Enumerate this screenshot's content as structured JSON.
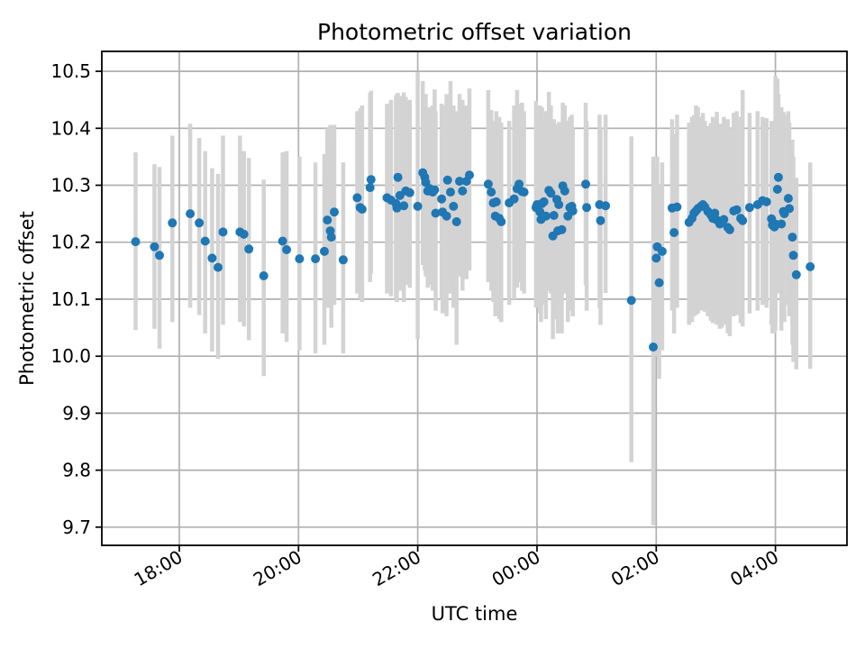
{
  "figure": {
    "title": "Photometric offset variation",
    "xlabel": "UTC time",
    "ylabel": "Photometric offset"
  },
  "chart_data": {
    "type": "scatter",
    "title": "Photometric offset variation",
    "xlabel": "UTC time",
    "ylabel": "Photometric offset",
    "grid": true,
    "legend": false,
    "marker_color": "#1f77b4",
    "errorbar_color": "#d3d3d3",
    "grid_color": "#b0b0b0",
    "axis_color": "#000000",
    "background_color": "#ffffff",
    "x_unit": "minutes since 00:00 of first day; values >= 1440 are after midnight",
    "xlim_minutes": [
      1002,
      1752
    ],
    "ylim": [
      9.668,
      10.535
    ],
    "x_ticks": [
      {
        "minutes": 1080,
        "label": "18:00"
      },
      {
        "minutes": 1200,
        "label": "20:00"
      },
      {
        "minutes": 1320,
        "label": "22:00"
      },
      {
        "minutes": 1440,
        "label": "00:00"
      },
      {
        "minutes": 1560,
        "label": "02:00"
      },
      {
        "minutes": 1680,
        "label": "04:00"
      }
    ],
    "y_ticks": [
      9.7,
      9.8,
      9.9,
      10.0,
      10.1,
      10.2,
      10.3,
      10.4,
      10.5
    ],
    "y_tick_labels": [
      "9.7",
      "9.8",
      "9.9",
      "10.0",
      "10.1",
      "10.2",
      "10.3",
      "10.4",
      "10.5"
    ],
    "points_format": [
      "time_minutes",
      "offset_value",
      "errorbar_low",
      "errorbar_high"
    ],
    "points": [
      [
        1036,
        10.201,
        10.046,
        10.358
      ],
      [
        1055,
        10.192,
        10.048,
        10.337
      ],
      [
        1060,
        10.177,
        10.013,
        10.332
      ],
      [
        1073,
        10.234,
        10.06,
        10.387
      ],
      [
        1091,
        10.25,
        10.085,
        10.408
      ],
      [
        1100,
        10.234,
        10.072,
        10.383
      ],
      [
        1106,
        10.202,
        10.04,
        10.36
      ],
      [
        1113,
        10.172,
        10.008,
        10.33
      ],
      [
        1119,
        10.156,
        9.995,
        10.32
      ],
      [
        1124,
        10.218,
        10.055,
        10.387
      ],
      [
        1141,
        10.218,
        10.06,
        10.387
      ],
      [
        1145,
        10.214,
        10.052,
        10.36
      ],
      [
        1150,
        10.188,
        10.028,
        10.348
      ],
      [
        1165,
        10.141,
        9.965,
        10.31
      ],
      [
        1184,
        10.202,
        10.04,
        10.358
      ],
      [
        1188,
        10.187,
        10.025,
        10.36
      ],
      [
        1201,
        10.171,
        10.01,
        10.35
      ],
      [
        1217,
        10.171,
        10.005,
        10.34
      ],
      [
        1226,
        10.184,
        10.02,
        10.355
      ],
      [
        1229,
        10.239,
        10.085,
        10.4
      ],
      [
        1232,
        10.22,
        10.085,
        10.406
      ],
      [
        1233,
        10.209,
        10.05,
        10.38
      ],
      [
        1236,
        10.253,
        10.09,
        10.406
      ],
      [
        1245,
        10.169,
        10.005,
        10.34
      ],
      [
        1259,
        10.278,
        10.11,
        10.43
      ],
      [
        1262,
        10.261,
        10.1,
        10.435
      ],
      [
        1264,
        10.258,
        10.095,
        10.44
      ],
      [
        1272,
        10.296,
        10.13,
        10.462
      ],
      [
        1273,
        10.31,
        10.145,
        10.466
      ],
      [
        1289,
        10.278,
        10.11,
        10.443
      ],
      [
        1293,
        10.274,
        10.105,
        10.45
      ],
      [
        1298,
        10.268,
        10.1,
        10.457
      ],
      [
        1299,
        10.26,
        10.095,
        10.46
      ],
      [
        1300,
        10.314,
        10.15,
        10.462
      ],
      [
        1302,
        10.282,
        10.115,
        10.457
      ],
      [
        1306,
        10.264,
        10.095,
        10.463
      ],
      [
        1308,
        10.29,
        10.125,
        10.455
      ],
      [
        1312,
        10.287,
        10.12,
        10.45
      ],
      [
        1320,
        10.263,
        10.03,
        10.498
      ],
      [
        1325,
        10.322,
        10.16,
        10.483
      ],
      [
        1327,
        10.314,
        10.15,
        10.457
      ],
      [
        1328,
        10.305,
        10.14,
        10.46
      ],
      [
        1330,
        10.29,
        10.12,
        10.435
      ],
      [
        1332,
        10.294,
        10.125,
        10.437
      ],
      [
        1335,
        10.288,
        10.115,
        10.44
      ],
      [
        1337,
        10.292,
        10.12,
        10.468
      ],
      [
        1338,
        10.251,
        10.08,
        10.43
      ],
      [
        1344,
        10.276,
        10.1,
        10.443
      ],
      [
        1345,
        10.253,
        10.075,
        10.44
      ],
      [
        1349,
        10.246,
        10.07,
        10.46
      ],
      [
        1350,
        10.309,
        10.14,
        10.42
      ],
      [
        1353,
        10.288,
        10.11,
        10.483
      ],
      [
        1356,
        10.263,
        10.085,
        10.44
      ],
      [
        1359,
        10.236,
        10.02,
        10.43
      ],
      [
        1362,
        10.307,
        10.14,
        10.46
      ],
      [
        1365,
        10.29,
        10.115,
        10.45
      ],
      [
        1369,
        10.307,
        10.135,
        10.44
      ],
      [
        1372,
        10.318,
        10.15,
        10.47
      ],
      [
        1391,
        10.302,
        10.13,
        10.467
      ],
      [
        1394,
        10.288,
        10.115,
        10.432
      ],
      [
        1396,
        10.269,
        10.095,
        10.4
      ],
      [
        1398,
        10.246,
        10.07,
        10.413
      ],
      [
        1399,
        10.271,
        10.1,
        10.43
      ],
      [
        1402,
        10.242,
        10.065,
        10.42
      ],
      [
        1404,
        10.236,
        10.06,
        10.41
      ],
      [
        1412,
        10.269,
        10.09,
        10.413
      ],
      [
        1417,
        10.276,
        10.1,
        10.44
      ],
      [
        1420,
        10.294,
        10.12,
        10.467
      ],
      [
        1422,
        10.302,
        10.13,
        10.443
      ],
      [
        1425,
        10.289,
        10.115,
        10.445
      ],
      [
        1427,
        10.288,
        10.11,
        10.43
      ],
      [
        1439,
        10.261,
        10.085,
        10.448
      ],
      [
        1440,
        10.266,
        10.09,
        10.416
      ],
      [
        1443,
        10.253,
        10.075,
        10.44
      ],
      [
        1444,
        10.24,
        10.06,
        10.42
      ],
      [
        1445,
        10.268,
        10.09,
        10.437
      ],
      [
        1447,
        10.271,
        10.095,
        10.413
      ],
      [
        1449,
        10.246,
        10.065,
        10.43
      ],
      [
        1452,
        10.291,
        10.115,
        10.464
      ],
      [
        1454,
        10.286,
        10.11,
        10.44
      ],
      [
        1456,
        10.211,
        10.03,
        10.38
      ],
      [
        1457,
        10.247,
        10.065,
        10.416
      ],
      [
        1460,
        10.275,
        10.095,
        10.407
      ],
      [
        1461,
        10.22,
        10.04,
        10.39
      ],
      [
        1462,
        10.266,
        10.085,
        10.411
      ],
      [
        1465,
        10.222,
        10.04,
        10.395
      ],
      [
        1466,
        10.299,
        10.125,
        10.445
      ],
      [
        1468,
        10.29,
        10.11,
        10.44
      ],
      [
        1471,
        10.246,
        10.06,
        10.413
      ],
      [
        1473,
        10.261,
        10.08,
        10.42
      ],
      [
        1475,
        10.263,
        10.08,
        10.424
      ],
      [
        1476,
        10.255,
        10.07,
        10.4
      ],
      [
        1489,
        10.302,
        10.125,
        10.445
      ],
      [
        1490,
        10.261,
        10.08,
        10.413
      ],
      [
        1503,
        10.266,
        10.085,
        10.424
      ],
      [
        1504,
        10.238,
        10.055,
        10.4
      ],
      [
        1509,
        10.264,
        10.111,
        10.424
      ],
      [
        1535,
        10.098,
        9.814,
        10.386
      ],
      [
        1557,
        10.016,
        9.703,
        10.35
      ],
      [
        1560,
        10.172,
        10.0,
        10.33
      ],
      [
        1561,
        10.192,
        10.02,
        10.35
      ],
      [
        1563,
        10.129,
        9.96,
        10.3
      ],
      [
        1566,
        10.184,
        10.01,
        10.34
      ],
      [
        1576,
        10.26,
        10.08,
        10.416
      ],
      [
        1578,
        10.217,
        10.04,
        10.39
      ],
      [
        1581,
        10.262,
        10.085,
        10.424
      ],
      [
        1593,
        10.235,
        10.055,
        10.41
      ],
      [
        1596,
        10.242,
        10.06,
        10.42
      ],
      [
        1598,
        10.251,
        10.07,
        10.423
      ],
      [
        1600,
        10.255,
        10.072,
        10.44
      ],
      [
        1602,
        10.259,
        10.075,
        10.437
      ],
      [
        1605,
        10.263,
        10.08,
        10.42
      ],
      [
        1607,
        10.266,
        10.082,
        10.427
      ],
      [
        1609,
        10.262,
        10.078,
        10.413
      ],
      [
        1612,
        10.254,
        10.07,
        10.404
      ],
      [
        1615,
        10.248,
        10.062,
        10.409
      ],
      [
        1617,
        10.242,
        10.058,
        10.42
      ],
      [
        1619,
        10.251,
        10.068,
        10.416
      ],
      [
        1621,
        10.239,
        10.055,
        10.429
      ],
      [
        1624,
        10.232,
        10.048,
        10.408
      ],
      [
        1626,
        10.235,
        10.05,
        10.4
      ],
      [
        1628,
        10.24,
        10.055,
        10.42
      ],
      [
        1632,
        10.226,
        10.04,
        10.416
      ],
      [
        1634,
        10.222,
        10.035,
        10.4
      ],
      [
        1638,
        10.255,
        10.07,
        10.427
      ],
      [
        1641,
        10.257,
        10.072,
        10.43
      ],
      [
        1645,
        10.242,
        10.058,
        10.42
      ],
      [
        1647,
        10.238,
        10.052,
        10.467
      ],
      [
        1654,
        10.261,
        10.075,
        10.427
      ],
      [
        1662,
        10.266,
        10.08,
        10.43
      ],
      [
        1667,
        10.273,
        10.09,
        10.42
      ],
      [
        1671,
        10.271,
        10.085,
        10.418
      ],
      [
        1676,
        10.241,
        10.055,
        10.413
      ],
      [
        1677,
        10.23,
        10.04,
        10.4
      ],
      [
        1679,
        10.227,
        10.04,
        10.395
      ],
      [
        1680,
        10.232,
        10.045,
        10.492
      ],
      [
        1682,
        10.293,
        10.11,
        10.487
      ],
      [
        1683,
        10.314,
        10.13,
        10.46
      ],
      [
        1686,
        10.232,
        10.045,
        10.437
      ],
      [
        1688,
        10.254,
        10.065,
        10.429
      ],
      [
        1689,
        10.25,
        10.06,
        10.424
      ],
      [
        1693,
        10.277,
        10.09,
        10.43
      ],
      [
        1694,
        10.259,
        10.07,
        10.41
      ],
      [
        1697,
        10.209,
        10.02,
        10.38
      ],
      [
        1698,
        10.177,
        9.99,
        10.35
      ],
      [
        1701,
        10.143,
        9.977,
        10.313
      ],
      [
        1715,
        10.157,
        9.978,
        10.34
      ]
    ]
  }
}
